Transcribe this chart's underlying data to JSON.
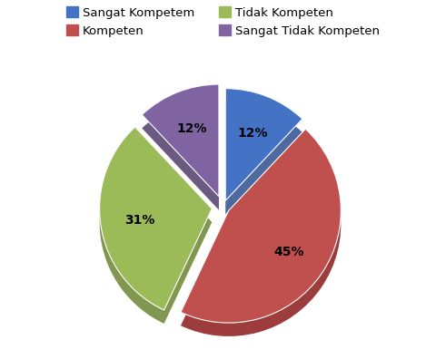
{
  "labels": [
    "Sangat Kompetem",
    "Kompeten",
    "Tidak Kompeten",
    "Sangat Tidak Kompeten"
  ],
  "values": [
    12,
    45,
    31,
    12
  ],
  "colors": [
    "#4472C4",
    "#C0504D",
    "#9BBB59",
    "#8064A2"
  ],
  "shadow_colors": [
    "#2E4F8F",
    "#8B1A1A",
    "#6B8530",
    "#503C6B"
  ],
  "explode": [
    0.06,
    0.06,
    0.1,
    0.1
  ],
  "startangle": 90,
  "legend_fontsize": 9.5,
  "background_color": "#ffffff",
  "depth": 0.12
}
